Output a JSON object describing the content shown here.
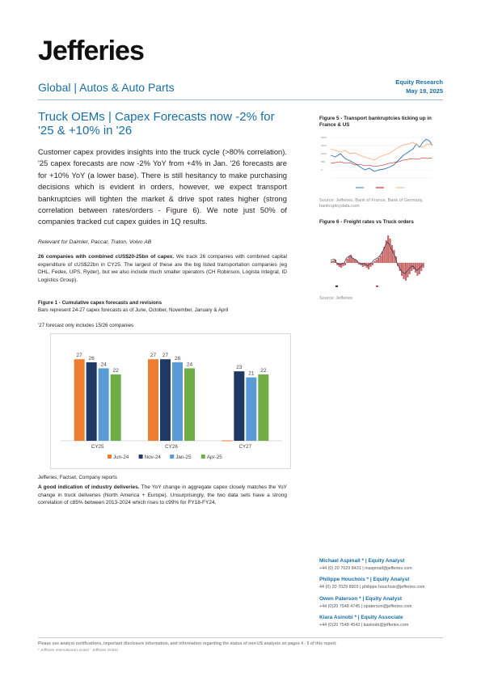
{
  "header": {
    "logo": "Jefferies",
    "sector": "Global | Autos & Auto Parts",
    "report_type": "Equity Research",
    "date": "May 19, 2025"
  },
  "headline": "Truck OEMs | Capex Forecasts now -2% for '25 & +10% in '26",
  "summary": "Customer capex provides insights into the truck cycle (>80% correlation). '25 capex forecasts are now -2% YoY from +4% in Jan. '26 forecasts are for +10% YoY (a lower base). There is still hesitancy to make purchasing decisions which is evident in orders, however, we expect transport bankruptcies will tighten the market & drive spot rates higher (strong correlation between rates/orders - Figure 6). We note just 50% of companies tracked cut capex guides in 1Q results.",
  "relevant": "Relevant for Daimler, Paccar, Traton, Volvo AB",
  "para1": {
    "lead": "26 companies with combined cUS$20-25bn of capex.",
    "body": " We track 26 companies with combined capital expenditure of cUS$22bn in CY25. The largest of these are the big listed transportation companies (eg DHL, Fedex, UPS, Ryder), but we also include much smaller operators (CH Robinson, Logista Integral, ID Logistics Group)."
  },
  "figure1": {
    "title": "Figure 1 - Cumulative capex forecasts and revisions",
    "subtitle": "Bars represent 24-27 capex forecasts as of June, October, November, January & April",
    "note": "'27 forecast only includes 15/26 companies",
    "source": "Jefferies, Factset, Company reports"
  },
  "para2": {
    "lead": "A good indication of industry deliveries.",
    "body": " The YoY change in aggregate capex closely matches the YoY change in truck deliveries (North America + Europe). Unsurprisingly, the two data sets have a strong correlation of c85% between 2013-2024 which rises to c99% for FY18-FY24."
  },
  "chart_data": {
    "type": "bar",
    "categories": [
      "CY25",
      "CY26",
      "CY27"
    ],
    "series": [
      {
        "name": "Jun-24",
        "color": "#ed7d31",
        "values": [
          27,
          27,
          null
        ]
      },
      {
        "name": "Nov-24",
        "color": "#1f3864",
        "values": [
          26,
          27,
          23
        ]
      },
      {
        "name": "Jan-25",
        "color": "#5b9bd5",
        "values": [
          24,
          26,
          21
        ]
      },
      {
        "name": "Apr-25",
        "color": "#70ad47",
        "values": [
          22,
          24,
          22
        ]
      }
    ],
    "ylim": [
      0,
      30
    ],
    "legend": "bottom"
  },
  "figure5": {
    "title": "Figure 5 - Transport bankruptcies ticking up in France & US",
    "source": "Source: Jefferies, Bank of France, Bank of Germany, bankruptcydata.com"
  },
  "figure6": {
    "title": "Figure 6 - Freight rates vs Truck orders",
    "source": "Source: Jefferies"
  },
  "analysts": [
    {
      "name": "Michael Aspinall * | Equity Analyst",
      "contact": "+44 (0) 20 7029 8431 | maspinall@jefferies.com"
    },
    {
      "name": "Philippe Houchois * | Equity Analyst",
      "contact": "44 (0) 20 7029 8903 | philippe.houchois@jefferies.com"
    },
    {
      "name": "Owen Paterson * | Equity Analyst",
      "contact": "+44 (0)20 7548 4745 | opaterson@jefferies.com"
    },
    {
      "name": "Kiara Asinobi * | Equity Associate",
      "contact": "+44 (0)20 7548 4542 | kasinobi@jefferies.com"
    }
  ],
  "footer": {
    "disclaimer": "Please see analyst certifications, important disclosure information, and information regarding the status of non-US analysts on pages 4 - 5 of this report.",
    "entities": "* Jefferies International Limited  ˆ Jefferies GmbH"
  }
}
